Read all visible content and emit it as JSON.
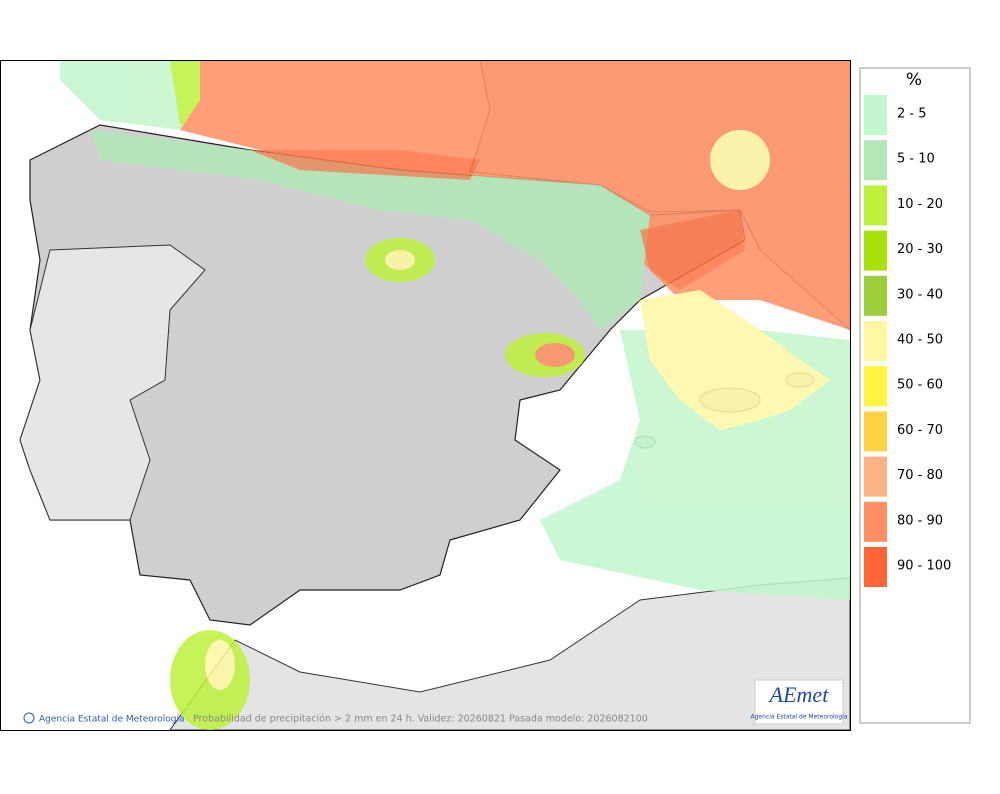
{
  "legend": {
    "title": "%",
    "items": [
      {
        "label": "2 - 5",
        "color": "#c2f7cc"
      },
      {
        "label": "5 - 10",
        "color": "#b2e8b6"
      },
      {
        "label": "10 - 20",
        "color": "#bdf23c"
      },
      {
        "label": "20 - 30",
        "color": "#a8e20c"
      },
      {
        "label": "30 - 40",
        "color": "#9ccf3a"
      },
      {
        "label": "40 - 50",
        "color": "#fff7a3"
      },
      {
        "label": "50 - 60",
        "color": "#fff43f"
      },
      {
        "label": "60 - 70",
        "color": "#ffd242"
      },
      {
        "label": "70 - 80",
        "color": "#ffb385"
      },
      {
        "label": "80 - 90",
        "color": "#ff8f62"
      },
      {
        "label": "90 - 100",
        "color": "#ff6535"
      }
    ]
  },
  "footer": {
    "credit": "Agencia Estatal de Meteorología",
    "caption": "Probabilidad de precipitación > 2 mm en 24 h. Validez: 20260821 Pasada modelo: 2026082100"
  },
  "logo": {
    "name": "AEmet",
    "subtitle": "Agencia Estatal de Meteorología"
  }
}
